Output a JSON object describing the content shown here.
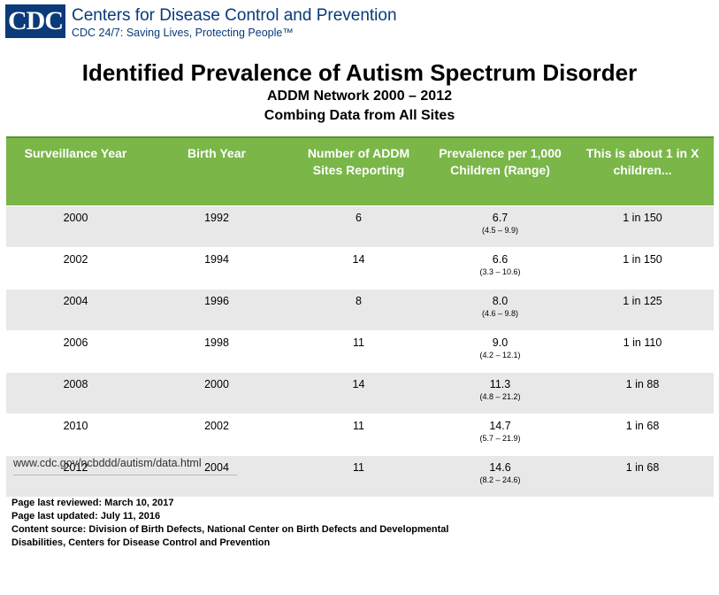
{
  "header": {
    "logo_text": "CDC",
    "org_name": "Centers for Disease Control and Prevention",
    "tagline": "CDC 24/7: Saving Lives, Protecting People™"
  },
  "titles": {
    "title": "Identified Prevalence of Autism Spectrum Disorder",
    "subtitle1": "ADDM Network 2000 – 2012",
    "subtitle2": "Combing Data from All Sites"
  },
  "table": {
    "header_color": "#7ab648",
    "columns": [
      "Surveillance Year",
      "Birth Year",
      "Number of ADDM Sites Reporting",
      "Prevalence per 1,000 Children (Range)",
      "This is about 1 in X children..."
    ],
    "rows": [
      {
        "surveillance_year": "2000",
        "birth_year": "1992",
        "sites": "6",
        "prevalence": "6.7",
        "range": "(4.5 – 9.9)",
        "one_in_x": "1 in 150"
      },
      {
        "surveillance_year": "2002",
        "birth_year": "1994",
        "sites": "14",
        "prevalence": "6.6",
        "range": "(3.3 – 10.6)",
        "one_in_x": "1 in 150"
      },
      {
        "surveillance_year": "2004",
        "birth_year": "1996",
        "sites": "8",
        "prevalence": "8.0",
        "range": "(4.6 – 9.8)",
        "one_in_x": "1 in 125"
      },
      {
        "surveillance_year": "2006",
        "birth_year": "1998",
        "sites": "11",
        "prevalence": "9.0",
        "range": "(4.2 – 12.1)",
        "one_in_x": "1 in 110"
      },
      {
        "surveillance_year": "2008",
        "birth_year": "2000",
        "sites": "14",
        "prevalence": "11.3",
        "range": "(4.8 – 21.2)",
        "one_in_x": "1 in 88"
      },
      {
        "surveillance_year": "2010",
        "birth_year": "2002",
        "sites": "11",
        "prevalence": "14.7",
        "range": "(5.7 – 21.9)",
        "one_in_x": "1 in 68"
      },
      {
        "surveillance_year": "2012",
        "birth_year": "2004",
        "sites": "11",
        "prevalence": "14.6",
        "range": "(8.2 – 24.6)",
        "one_in_x": "1 in 68"
      }
    ]
  },
  "url": "www.cdc.gov/ncbddd/autism/data.html",
  "footer": {
    "reviewed": "Page last reviewed: March 10, 2017",
    "updated": "Page last updated: July 11, 2016",
    "source": "Content source: Division of Birth Defects, National Center on Birth Defects and Developmental Disabilities, Centers for Disease Control and Prevention"
  }
}
